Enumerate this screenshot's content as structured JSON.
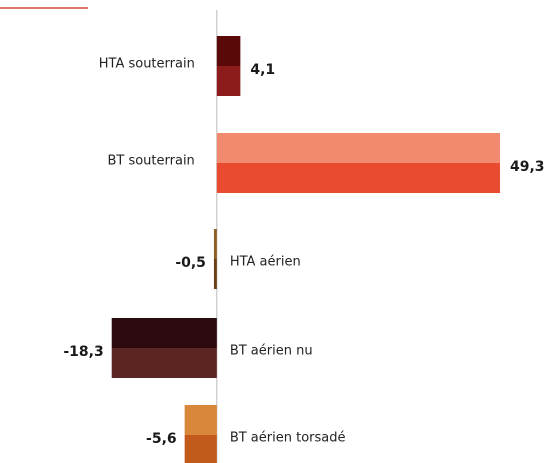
{
  "chart_data": {
    "type": "hbar",
    "categories": [
      "HTA souterrain",
      "BT souterrain",
      "HTA aérien",
      "BT aérien nu",
      "BT aérien torsadé"
    ],
    "values": [
      4.1,
      49.3,
      -0.5,
      -18.3,
      -5.6
    ],
    "value_labels": [
      "4,1",
      "49,3",
      "-0,5",
      "-18,3",
      "-5,6"
    ],
    "colors": [
      [
        "#5a0909",
        "#8c1c1c"
      ],
      [
        "#f28a70",
        "#e84b30"
      ],
      [
        "#8f5e22",
        "#6a3f14"
      ],
      [
        "#2b0a0f",
        "#5b2522"
      ],
      [
        "#d9873a",
        "#c15a1b"
      ]
    ],
    "xlim": [
      -28,
      50
    ]
  }
}
